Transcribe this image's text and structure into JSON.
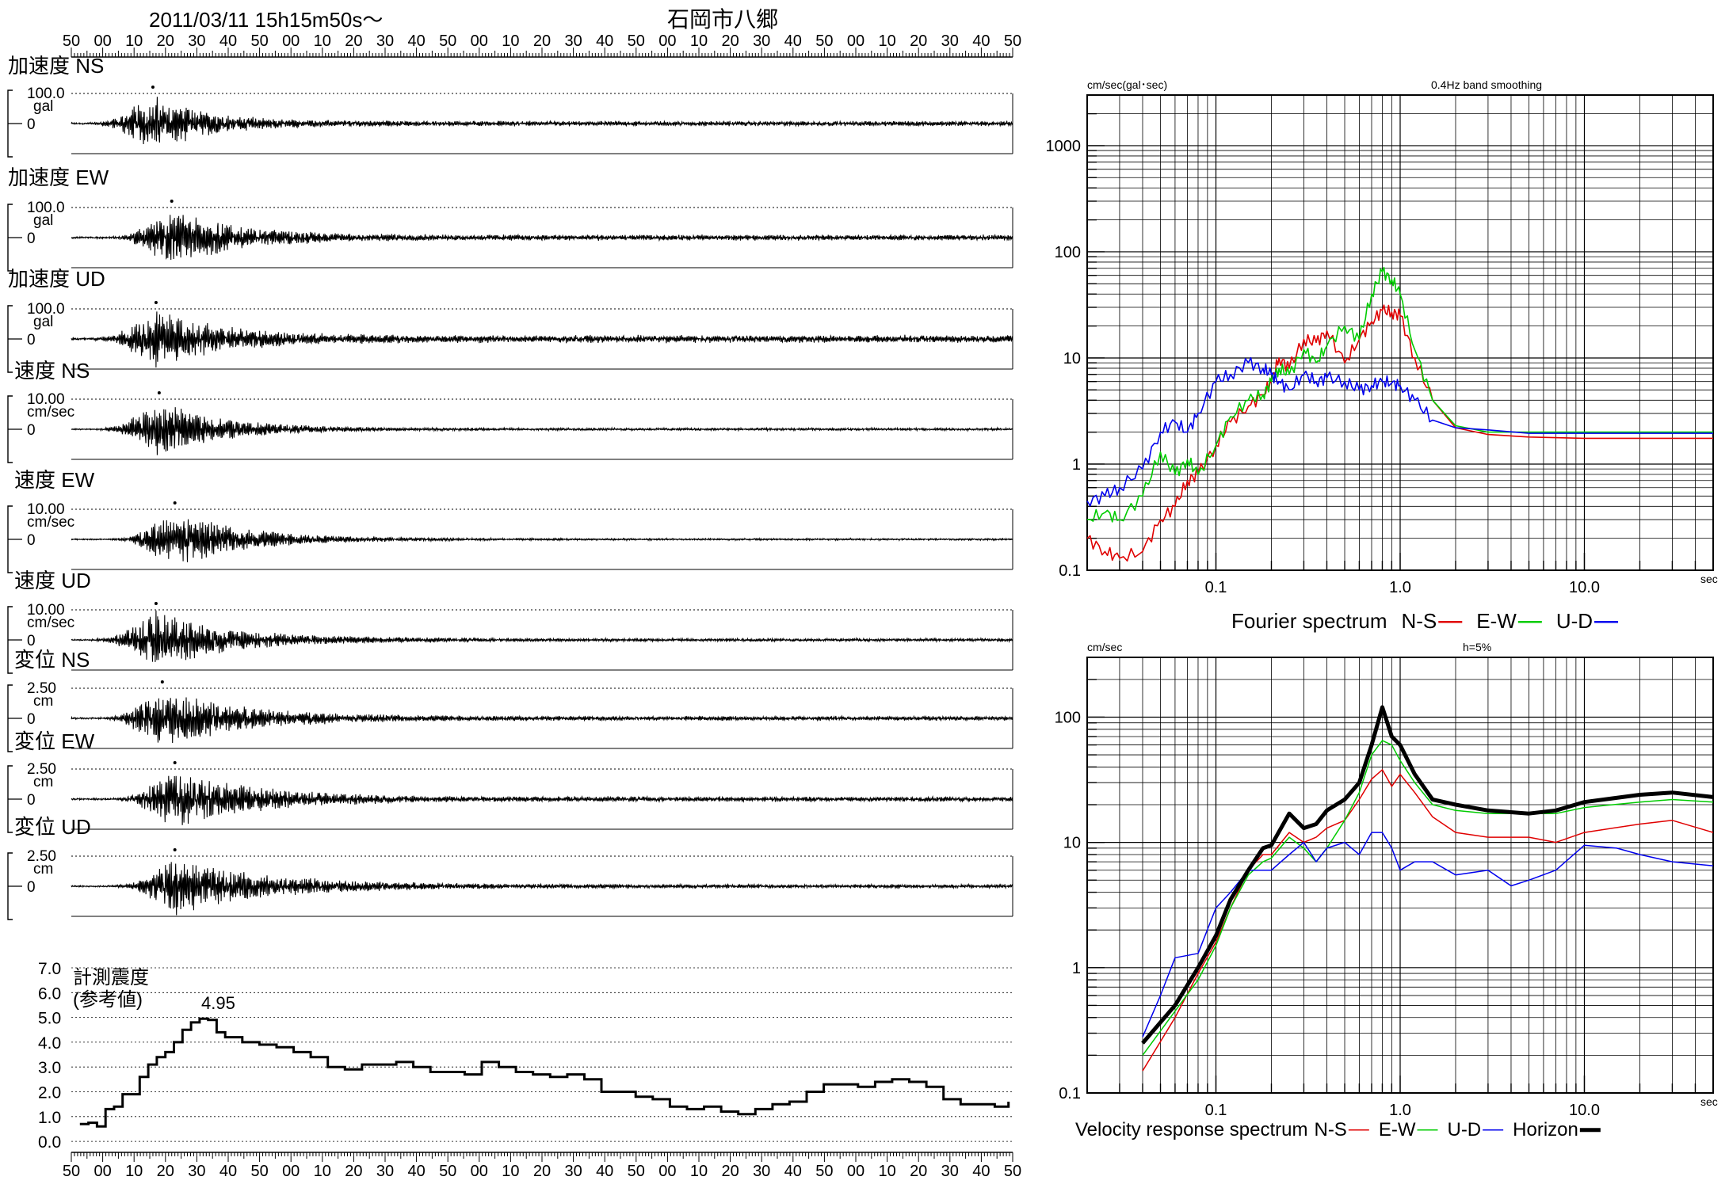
{
  "header": {
    "datetime": "2011/03/11  15h15m50s～",
    "station": "石岡市八郷"
  },
  "time_ticks": [
    "50",
    "00",
    "10",
    "20",
    "30",
    "40",
    "50",
    "00",
    "10",
    "20",
    "30",
    "40",
    "50",
    "00",
    "10",
    "20",
    "30",
    "40",
    "50",
    "00",
    "10",
    "20",
    "30",
    "40",
    "50",
    "00",
    "10",
    "20",
    "30",
    "40",
    "50"
  ],
  "waveforms": [
    {
      "label": "加速度 NS",
      "max_label": "100.0",
      "unit": "gal",
      "zero_label": "0",
      "max": 100.0,
      "peaks": [
        {
          "t": 26,
          "v": 84
        },
        {
          "t": 29,
          "v": -72
        },
        {
          "t": 35,
          "v": 58
        }
      ],
      "decay": 0.06,
      "noise": 0.08
    },
    {
      "label": "加速度 EW",
      "max_label": "100.0",
      "unit": "gal",
      "zero_label": "0",
      "max": 100.0,
      "peaks": [
        {
          "t": 32,
          "v": 140
        },
        {
          "t": 30,
          "v": -150
        },
        {
          "t": 24,
          "v": 60
        }
      ],
      "decay": 0.05,
      "noise": 0.09
    },
    {
      "label": "加速度 UD",
      "max_label": "100.0",
      "unit": "gal",
      "zero_label": "0",
      "max": 100.0,
      "peaks": [
        {
          "t": 27,
          "v": 62
        },
        {
          "t": 32,
          "v": -48
        },
        {
          "t": 22,
          "v": 40
        }
      ],
      "decay": 0.05,
      "noise": 0.12
    },
    {
      "label": "速度 NS",
      "max_label": "10.00",
      "unit": "cm/sec",
      "zero_label": "0",
      "max": 10.0,
      "peaks": [
        {
          "t": 28,
          "v": 14
        },
        {
          "t": 30,
          "v": -10
        },
        {
          "t": 36,
          "v": 7
        }
      ],
      "decay": 0.05,
      "noise": 0.04
    },
    {
      "label": "速度 EW",
      "max_label": "10.00",
      "unit": "cm/sec",
      "zero_label": "0",
      "max": 10.0,
      "peaks": [
        {
          "t": 33,
          "v": 18
        },
        {
          "t": 32,
          "v": -19
        },
        {
          "t": 25,
          "v": 9
        }
      ],
      "decay": 0.045,
      "noise": 0.03
    },
    {
      "label": "速度 UD",
      "max_label": "10.00",
      "unit": "cm/sec",
      "zero_label": "0",
      "max": 10.0,
      "peaks": [
        {
          "t": 27,
          "v": 4
        },
        {
          "t": 28,
          "v": -4
        },
        {
          "t": 33,
          "v": 3
        }
      ],
      "decay": 0.04,
      "noise": 0.05
    },
    {
      "label": "変位 NS",
      "max_label": "2.50",
      "unit": "cm",
      "zero_label": "0",
      "max": 2.5,
      "peaks": [
        {
          "t": 29,
          "v": 2.3
        },
        {
          "t": 33,
          "v": -1.6
        },
        {
          "t": 38,
          "v": 1.2
        }
      ],
      "decay": 0.04,
      "noise": 0.07
    },
    {
      "label": "変位 EW",
      "max_label": "2.50",
      "unit": "cm",
      "zero_label": "0",
      "max": 2.5,
      "peaks": [
        {
          "t": 33,
          "v": 2.5
        },
        {
          "t": 30,
          "v": -2.5
        },
        {
          "t": 27,
          "v": 1.5
        }
      ],
      "decay": 0.04,
      "noise": 0.08
    },
    {
      "label": "変位 UD",
      "max_label": "2.50",
      "unit": "cm",
      "zero_label": "0",
      "max": 2.5,
      "peaks": [
        {
          "t": 33,
          "v": 1.6
        },
        {
          "t": 27,
          "v": -2.1
        },
        {
          "t": 40,
          "v": 1.2
        }
      ],
      "decay": 0.035,
      "noise": 0.06
    }
  ],
  "intensity": {
    "title": "計測震度",
    "subtitle": "(参考値)",
    "peak_label": "4.95",
    "y_ticks": [
      "7.0",
      "6.0",
      "5.0",
      "4.0",
      "3.0",
      "2.0",
      "1.0",
      "0.0"
    ],
    "points": [
      [
        5,
        0.7
      ],
      [
        10,
        0.75
      ],
      [
        15,
        0.6
      ],
      [
        20,
        1.3
      ],
      [
        25,
        1.4
      ],
      [
        30,
        1.9
      ],
      [
        40,
        2.6
      ],
      [
        45,
        3.1
      ],
      [
        50,
        3.4
      ],
      [
        55,
        3.6
      ],
      [
        60,
        4.0
      ],
      [
        65,
        4.5
      ],
      [
        70,
        4.8
      ],
      [
        75,
        4.95
      ],
      [
        80,
        4.9
      ],
      [
        85,
        4.4
      ],
      [
        90,
        4.2
      ],
      [
        100,
        4.0
      ],
      [
        110,
        3.9
      ],
      [
        120,
        3.8
      ],
      [
        130,
        3.6
      ],
      [
        140,
        3.4
      ],
      [
        150,
        3.0
      ],
      [
        160,
        2.9
      ],
      [
        170,
        3.1
      ],
      [
        180,
        3.1
      ],
      [
        190,
        3.2
      ],
      [
        200,
        3.0
      ],
      [
        210,
        2.8
      ],
      [
        220,
        2.8
      ],
      [
        230,
        2.7
      ],
      [
        240,
        3.2
      ],
      [
        250,
        3.0
      ],
      [
        260,
        2.8
      ],
      [
        270,
        2.7
      ],
      [
        280,
        2.6
      ],
      [
        290,
        2.7
      ],
      [
        300,
        2.5
      ],
      [
        310,
        2.0
      ],
      [
        320,
        2.0
      ],
      [
        330,
        1.8
      ],
      [
        340,
        1.7
      ],
      [
        350,
        1.4
      ],
      [
        360,
        1.3
      ],
      [
        370,
        1.4
      ],
      [
        380,
        1.2
      ],
      [
        390,
        1.1
      ],
      [
        400,
        1.3
      ],
      [
        410,
        1.5
      ],
      [
        420,
        1.6
      ],
      [
        430,
        2.0
      ],
      [
        440,
        2.3
      ],
      [
        450,
        2.3
      ],
      [
        460,
        2.2
      ],
      [
        470,
        2.4
      ],
      [
        480,
        2.5
      ],
      [
        490,
        2.4
      ],
      [
        500,
        2.2
      ],
      [
        510,
        1.7
      ],
      [
        520,
        1.5
      ],
      [
        530,
        1.5
      ],
      [
        540,
        1.4
      ],
      [
        548,
        1.6
      ]
    ]
  },
  "chart_data": [
    {
      "type": "line",
      "title": "Fourier spectrum",
      "subtitle": "0.4Hz band smoothing",
      "ylabel": "cm/sec(gal･sec)",
      "xlabel": "sec",
      "x_scale": "log",
      "y_scale": "log",
      "xlim": [
        0.02,
        50
      ],
      "ylim": [
        0.1,
        3000
      ],
      "x_tick_labels": [
        "0.1",
        "1.0",
        "10.0"
      ],
      "y_tick_labels": [
        "1000",
        "100",
        "10",
        "1",
        "0.1"
      ],
      "series": [
        {
          "name": "N-S",
          "color": "#e00000",
          "x": [
            0.02,
            0.025,
            0.03,
            0.04,
            0.05,
            0.06,
            0.07,
            0.08,
            0.1,
            0.12,
            0.15,
            0.18,
            0.2,
            0.22,
            0.25,
            0.3,
            0.35,
            0.4,
            0.5,
            0.6,
            0.7,
            0.8,
            0.9,
            1.0,
            1.2,
            1.5,
            2,
            3,
            5,
            10,
            50
          ],
          "y": [
            0.2,
            0.15,
            0.13,
            0.15,
            0.3,
            0.4,
            0.7,
            0.8,
            1.5,
            2.5,
            3.5,
            4.5,
            6,
            10,
            8,
            15,
            14,
            18,
            9,
            15,
            22,
            28,
            27,
            25,
            10,
            4,
            2.2,
            1.9,
            1.8,
            1.75,
            1.75
          ]
        },
        {
          "name": "E-W",
          "color": "#00cc00",
          "x": [
            0.02,
            0.025,
            0.03,
            0.04,
            0.05,
            0.06,
            0.07,
            0.08,
            0.1,
            0.12,
            0.15,
            0.18,
            0.2,
            0.22,
            0.25,
            0.3,
            0.35,
            0.4,
            0.5,
            0.6,
            0.7,
            0.8,
            0.9,
            1.0,
            1.2,
            1.5,
            2,
            3,
            5,
            10,
            50
          ],
          "y": [
            0.3,
            0.35,
            0.3,
            0.5,
            1.3,
            0.8,
            1.1,
            0.8,
            1.5,
            2.8,
            4,
            4.5,
            6,
            8,
            7,
            12,
            9,
            13,
            20,
            15,
            40,
            65,
            55,
            40,
            12,
            4,
            2.3,
            2,
            2,
            2,
            2
          ]
        },
        {
          "name": "U-D",
          "color": "#0000ee",
          "x": [
            0.02,
            0.025,
            0.03,
            0.04,
            0.05,
            0.06,
            0.07,
            0.08,
            0.1,
            0.12,
            0.15,
            0.18,
            0.2,
            0.22,
            0.25,
            0.3,
            0.35,
            0.4,
            0.5,
            0.6,
            0.7,
            0.8,
            0.9,
            1.0,
            1.2,
            1.5,
            2,
            3,
            5,
            10,
            50
          ],
          "y": [
            0.45,
            0.5,
            0.6,
            0.9,
            2.0,
            2.5,
            2.0,
            3,
            6,
            7,
            9,
            8,
            7,
            6,
            5,
            7,
            6,
            6.5,
            6,
            5,
            5.5,
            6,
            5.8,
            5.5,
            4,
            2.6,
            2.2,
            2.1,
            1.95,
            1.95,
            1.95
          ]
        }
      ]
    },
    {
      "type": "line",
      "title": "Velocity response spectrum",
      "subtitle": "h=5%",
      "ylabel": "cm/sec",
      "xlabel": "sec",
      "x_scale": "log",
      "y_scale": "log",
      "xlim": [
        0.02,
        50
      ],
      "ylim": [
        0.1,
        300
      ],
      "x_tick_labels": [
        "0.1",
        "1.0",
        "10.0"
      ],
      "y_tick_labels": [
        "100",
        "10",
        "1",
        "0.1"
      ],
      "series": [
        {
          "name": "N-S",
          "color": "#e00000",
          "width": 1.5,
          "x": [
            0.04,
            0.06,
            0.08,
            0.1,
            0.12,
            0.15,
            0.18,
            0.2,
            0.25,
            0.3,
            0.35,
            0.4,
            0.5,
            0.6,
            0.7,
            0.8,
            0.9,
            1.0,
            1.2,
            1.5,
            2,
            3,
            5,
            7,
            10,
            20,
            30,
            50
          ],
          "y": [
            0.15,
            0.4,
            0.9,
            1.6,
            3,
            6,
            8,
            8,
            12,
            10,
            11,
            13,
            15,
            22,
            32,
            38,
            28,
            35,
            25,
            16,
            12,
            11,
            11,
            10,
            12,
            14,
            15,
            12
          ]
        },
        {
          "name": "E-W",
          "color": "#00cc00",
          "width": 1.5,
          "x": [
            0.04,
            0.06,
            0.08,
            0.1,
            0.12,
            0.15,
            0.18,
            0.2,
            0.25,
            0.3,
            0.35,
            0.4,
            0.5,
            0.6,
            0.7,
            0.8,
            0.9,
            1.0,
            1.2,
            1.5,
            2,
            3,
            5,
            7,
            10,
            20,
            30,
            50
          ],
          "y": [
            0.2,
            0.45,
            0.8,
            1.5,
            3,
            5.5,
            7,
            7.5,
            11,
            9,
            7,
            9,
            15,
            25,
            50,
            65,
            60,
            45,
            30,
            20,
            18,
            17,
            17,
            17,
            19,
            21,
            22,
            21
          ]
        },
        {
          "name": "U-D",
          "color": "#0000ee",
          "width": 1.5,
          "x": [
            0.04,
            0.05,
            0.06,
            0.08,
            0.1,
            0.12,
            0.15,
            0.2,
            0.25,
            0.3,
            0.35,
            0.4,
            0.5,
            0.6,
            0.7,
            0.8,
            0.9,
            1.0,
            1.2,
            1.5,
            2,
            3,
            4,
            5,
            7,
            10,
            15,
            20,
            30,
            50
          ],
          "y": [
            0.28,
            0.6,
            1.2,
            1.3,
            3,
            4,
            6,
            6,
            8,
            10,
            7,
            9,
            10,
            8,
            12,
            12,
            9,
            6,
            7,
            7,
            5.5,
            6,
            4.5,
            5,
            6,
            9.5,
            9,
            8,
            7,
            6.5
          ]
        },
        {
          "name": "Horizon",
          "color": "#000000",
          "width": 5,
          "x": [
            0.04,
            0.06,
            0.08,
            0.1,
            0.12,
            0.15,
            0.18,
            0.2,
            0.25,
            0.3,
            0.35,
            0.4,
            0.5,
            0.6,
            0.7,
            0.8,
            0.9,
            1.0,
            1.2,
            1.5,
            2,
            3,
            5,
            7,
            10,
            20,
            30,
            50
          ],
          "y": [
            0.25,
            0.5,
            1.0,
            1.8,
            3.5,
            6,
            9,
            9.5,
            17,
            13,
            14,
            18,
            22,
            30,
            60,
            120,
            70,
            60,
            35,
            22,
            20,
            18,
            17,
            18,
            21,
            24,
            25,
            23
          ]
        }
      ]
    }
  ]
}
